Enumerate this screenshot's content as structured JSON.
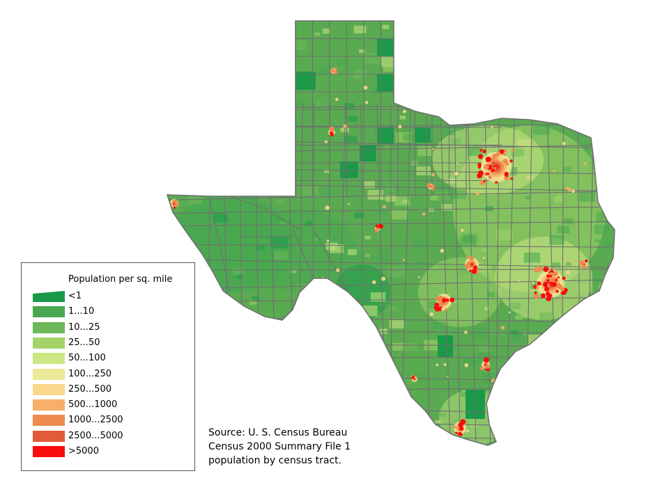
{
  "map": {
    "region": "Texas",
    "fill_base": "#5aaa52",
    "boundary_color": "#6f6f6f",
    "urban_colors": {
      "dense": "#e8261c",
      "medium": "#f08a4b",
      "light": "#f7d07a",
      "suburban": "#c4e07c"
    }
  },
  "legend": {
    "title": "Population per sq. mile",
    "items": [
      {
        "label": "<1",
        "color": "#1a9a48"
      },
      {
        "label": "1...10",
        "color": "#48a850"
      },
      {
        "label": "10...25",
        "color": "#6cb85a"
      },
      {
        "label": "25...50",
        "color": "#a4d468"
      },
      {
        "label": "50...100",
        "color": "#cde684"
      },
      {
        "label": "100...250",
        "color": "#ebe998"
      },
      {
        "label": "250...500",
        "color": "#f9d88c"
      },
      {
        "label": "500...1000",
        "color": "#f6b068"
      },
      {
        "label": "1000...2500",
        "color": "#f08a4f"
      },
      {
        "label": "2500...5000",
        "color": "#e25a38"
      },
      {
        "label": ">5000",
        "color": "#f70d0d"
      }
    ]
  },
  "source": {
    "line1": "Source: U. S. Census Bureau",
    "line2": "Census 2000 Summary File 1",
    "line3": "population by census tract."
  }
}
